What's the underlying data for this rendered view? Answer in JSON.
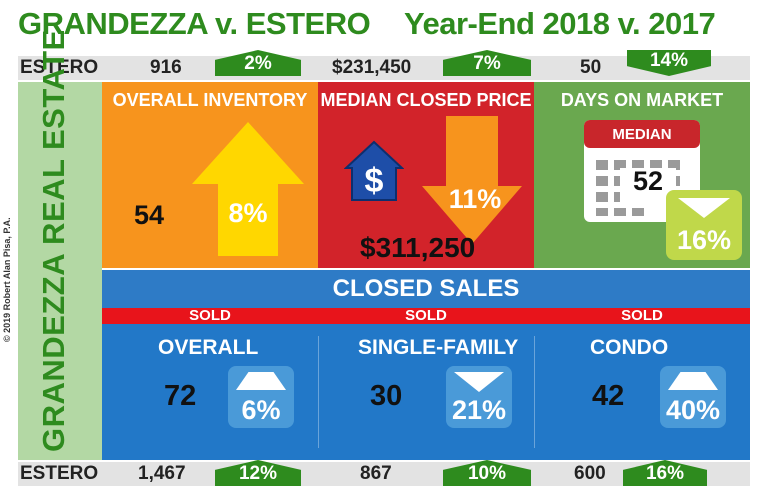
{
  "header": {
    "title_left": "GRANDEZZA v. ESTERO",
    "title_right": "Year-End 2018 v. 2017"
  },
  "estero_top": {
    "label": "ESTERO",
    "inventory": "916",
    "inventory_change": "2%",
    "price": "$231,450",
    "price_change": "7%",
    "days": "50",
    "days_change": "14%"
  },
  "side": {
    "vertical_label": "GRANDEZZA REAL ESTATE",
    "copyright": "© 2019 Robert Alan Pisa, P.A."
  },
  "panels": {
    "inventory": {
      "title": "OVERALL INVENTORY",
      "value": "54",
      "change": "8%"
    },
    "price": {
      "title": "MEDIAN CLOSED PRICE",
      "value": "$311,250",
      "change": "11%"
    },
    "days": {
      "title": "DAYS ON MARKET",
      "calendar_label": "MEDIAN",
      "value": "52",
      "change": "16%"
    }
  },
  "closed_sales": {
    "title": "CLOSED SALES",
    "sold_labels": [
      "SOLD",
      "SOLD",
      "SOLD"
    ],
    "items": [
      {
        "title": "OVERALL",
        "value": "72",
        "change": "6%"
      },
      {
        "title": "SINGLE-FAMILY",
        "value": "30",
        "change": "21%"
      },
      {
        "title": "CONDO",
        "value": "42",
        "change": "40%"
      }
    ]
  },
  "estero_bottom": {
    "label": "ESTERO",
    "overall": "1,467",
    "overall_change": "12%",
    "single_family": "867",
    "single_family_change": "10%",
    "condo": "600",
    "condo_change": "16%"
  },
  "colors": {
    "green": "#2e8b1e",
    "orange": "#f7941d",
    "red": "#d2232a",
    "panel_green": "#6aa84f",
    "blue": "#2278c8",
    "yellow": "#ffd700"
  },
  "icons": [
    "up-arrow-icon",
    "down-arrow-icon",
    "house-dollar-icon",
    "calendar-icon"
  ]
}
